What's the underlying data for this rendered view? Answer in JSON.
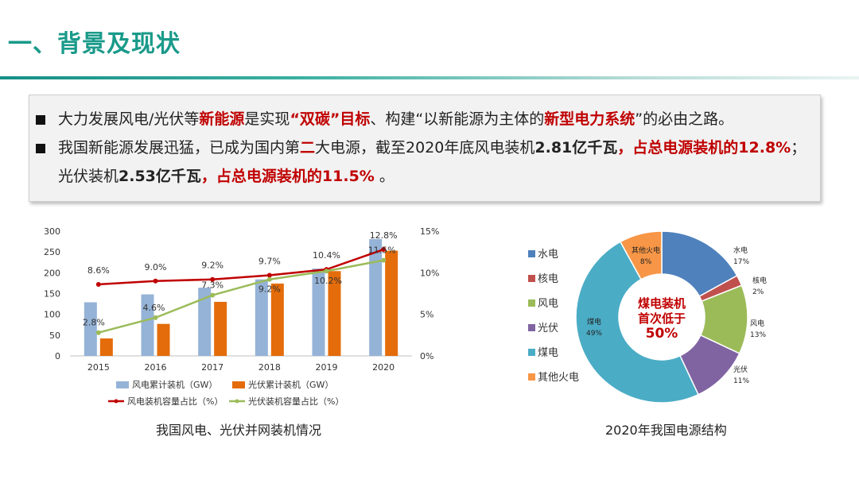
{
  "page": {
    "title": "一、背景及现状",
    "bullets": [
      [
        {
          "t": "大力发展风电/光伏等",
          "s": ""
        },
        {
          "t": "新能源",
          "s": "hl"
        },
        {
          "t": "是实现",
          "s": ""
        },
        {
          "t": "“双碳”目标",
          "s": "hl"
        },
        {
          "t": "、构建“以新能源为主体的",
          "s": ""
        },
        {
          "t": "新型电力系统",
          "s": "hl"
        },
        {
          "t": "”的必由之路。",
          "s": ""
        }
      ],
      [
        {
          "t": "我国新能源发展迅猛，已成为国内第",
          "s": ""
        },
        {
          "t": "二",
          "s": "hl"
        },
        {
          "t": "大电源，截至2020年底风电装机",
          "s": ""
        },
        {
          "t": "2.81亿千瓦",
          "s": "bold"
        },
        {
          "t": "，占总电源装机的12.8%",
          "s": "hl"
        },
        {
          "t": "；光伏装机",
          "s": ""
        },
        {
          "t": "2.53亿千瓦",
          "s": "bold"
        },
        {
          "t": "，占总电源装机的11.5%",
          "s": "hl"
        },
        {
          "t": " 。",
          "s": ""
        }
      ]
    ],
    "captions": {
      "left": "我国风电、光伏并网装机情况",
      "right": "2020年我国电源结构"
    }
  },
  "colors": {
    "wind_bar": "#95b3d7",
    "solar_bar": "#e46c0a",
    "wind_line": "#c00000",
    "solar_line": "#9bbb59",
    "accent": "#c00000",
    "title": "#1a9a8a"
  },
  "chart_data": [
    {
      "type": "bar",
      "categories": [
        "2015",
        "2016",
        "2017",
        "2018",
        "2019",
        "2020"
      ],
      "series": [
        {
          "name": "风电累计装机（GW）",
          "kind": "bar",
          "axis": "left",
          "values": [
            129,
            148,
            164,
            184,
            210,
            281
          ]
        },
        {
          "name": "光伏累计装机（GW）",
          "kind": "bar",
          "axis": "left",
          "values": [
            42,
            77,
            130,
            174,
            204,
            253
          ]
        },
        {
          "name": "风电装机容量占比（%）",
          "kind": "line",
          "axis": "right",
          "values": [
            8.6,
            9.0,
            9.2,
            9.7,
            10.4,
            12.8
          ],
          "labels": [
            "8.6%",
            "9.0%",
            "9.2%",
            "9.7%",
            "10.4%",
            "12.8%"
          ]
        },
        {
          "name": "光伏装机容量占比（%）",
          "kind": "line",
          "axis": "right",
          "values": [
            2.8,
            4.6,
            7.3,
            9.2,
            10.2,
            11.5
          ],
          "labels": [
            "2.8%",
            "4.6%",
            "7.3%",
            "9.2%",
            "10.2%",
            "11.5%"
          ]
        }
      ],
      "ylim": [
        0,
        300
      ],
      "yticks": [
        "0",
        "50",
        "100",
        "150",
        "200",
        "250",
        "300"
      ],
      "y2lim": [
        0,
        15
      ],
      "y2ticks": [
        "0%",
        "5%",
        "10%",
        "15%"
      ],
      "legend": "bottom",
      "title": "我国风电、光伏并网装机情况"
    },
    {
      "type": "pie",
      "title": "2020年我国电源结构",
      "slices": [
        {
          "name": "水电",
          "value": 17,
          "label": "17%",
          "color": "#4f81bd"
        },
        {
          "name": "核电",
          "value": 2,
          "label": "2%",
          "color": "#c0504d"
        },
        {
          "name": "风电",
          "value": 13,
          "label": "13%",
          "color": "#9bbb59"
        },
        {
          "name": "光伏",
          "value": 11,
          "label": "11%",
          "color": "#8064a2"
        },
        {
          "name": "煤电",
          "value": 49,
          "label": "49%",
          "color": "#4bacc6"
        },
        {
          "name": "其他火电",
          "value": 8,
          "label": "8%",
          "color": "#f79646"
        }
      ],
      "center_text": [
        "煤电装机",
        "首次低于",
        "50%"
      ],
      "legend": "left"
    }
  ]
}
